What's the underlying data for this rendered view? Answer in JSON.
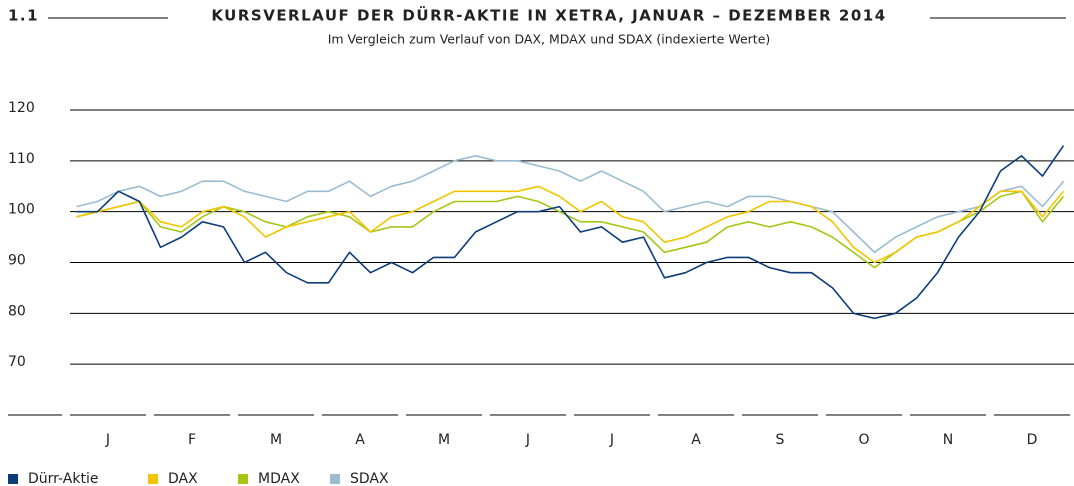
{
  "chart_data": {
    "type": "line",
    "number": "1.1",
    "title": "KURSVERLAUF DER DÜRR-AKTIE IN XETRA, JANUAR – DEZEMBER 2014",
    "subtitle": "Im Vergleich zum Verlauf von DAX, MDAX und SDAX (indexierte Werte)",
    "categories": [
      "J",
      null,
      null,
      null,
      "F",
      null,
      null,
      null,
      "M",
      null,
      null,
      null,
      "A",
      null,
      null,
      null,
      "M",
      null,
      null,
      null,
      "J",
      null,
      null,
      null,
      "J",
      null,
      null,
      null,
      "A",
      null,
      null,
      null,
      "S",
      null,
      null,
      null,
      "O",
      null,
      null,
      null,
      "N",
      null,
      null,
      null,
      "D",
      null,
      null,
      null
    ],
    "series": [
      {
        "name": "SDAX",
        "color": "#9bbcd0",
        "values": [
          101,
          102,
          104,
          105,
          103,
          104,
          106,
          106,
          104,
          103,
          102,
          104,
          104,
          106,
          103,
          105,
          106,
          108,
          110,
          111,
          110,
          110,
          109,
          108,
          106,
          108,
          106,
          104,
          100,
          101,
          102,
          101,
          103,
          103,
          102,
          101,
          100,
          96,
          92,
          95,
          97,
          99,
          100,
          101,
          104,
          105,
          101,
          106
        ]
      },
      {
        "name": "MDAX",
        "color": "#a4c615",
        "values": [
          99,
          100,
          101,
          102,
          97,
          96,
          99,
          101,
          100,
          98,
          97,
          99,
          100,
          99,
          96,
          97,
          97,
          100,
          102,
          102,
          102,
          103,
          102,
          100,
          98,
          98,
          97,
          96,
          92,
          93,
          94,
          97,
          98,
          97,
          98,
          97,
          95,
          92,
          89,
          92,
          95,
          96,
          98,
          100,
          103,
          104,
          98,
          103
        ]
      },
      {
        "name": "DAX",
        "color": "#f2c500",
        "values": [
          99,
          100,
          101,
          102,
          98,
          97,
          100,
          101,
          99,
          95,
          97,
          98,
          99,
          100,
          96,
          99,
          100,
          102,
          104,
          104,
          104,
          104,
          105,
          103,
          100,
          102,
          99,
          98,
          94,
          95,
          97,
          99,
          100,
          102,
          102,
          101,
          98,
          93,
          90,
          92,
          95,
          96,
          98,
          101,
          104,
          104,
          99,
          104
        ]
      },
      {
        "name": "Dürr-Aktie",
        "color": "#0d3c7a",
        "values": [
          100,
          100,
          104,
          102,
          93,
          95,
          98,
          97,
          90,
          92,
          88,
          86,
          86,
          92,
          88,
          90,
          88,
          91,
          91,
          96,
          98,
          100,
          100,
          101,
          96,
          97,
          94,
          95,
          87,
          88,
          90,
          91,
          91,
          89,
          88,
          88,
          85,
          80,
          79,
          80,
          83,
          88,
          95,
          100,
          108,
          111,
          107,
          113
        ]
      }
    ],
    "legend_order": [
      3,
      2,
      1,
      0
    ],
    "ylim": [
      60,
      120
    ],
    "yticks": [
      70,
      80,
      90,
      100,
      110,
      120
    ],
    "grid": true
  }
}
